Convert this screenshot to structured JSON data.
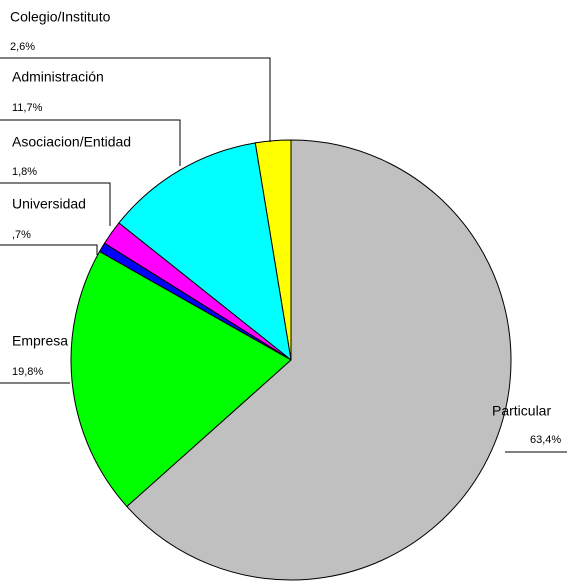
{
  "chart_data": {
    "type": "pie",
    "categories": [
      "Colegio/Instituto",
      "Administración",
      "Asociacion/Entidad",
      "Universidad",
      "Empresa",
      "Particular"
    ],
    "values": [
      2.6,
      11.7,
      1.8,
      0.7,
      19.8,
      63.4
    ],
    "value_labels": [
      "2,6%",
      "11,7%",
      "1,8%",
      ",7%",
      "19,8%",
      "63,4%"
    ],
    "colors": [
      "#ffff00",
      "#00ffff",
      "#ff00ff",
      "#0000ff",
      "#00ff00",
      "#c0c0c0"
    ]
  }
}
